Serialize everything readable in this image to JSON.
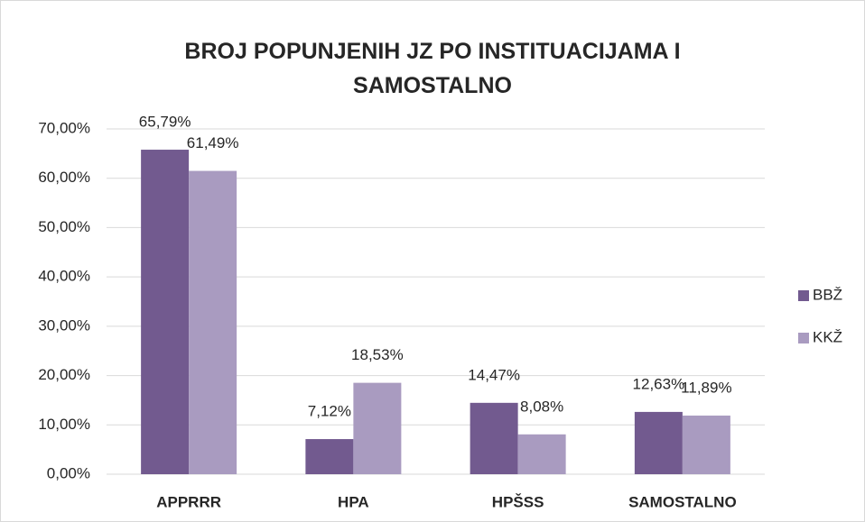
{
  "chart_data": {
    "type": "bar",
    "title": "BROJ POPUNJENIH JZ PO INSTITUACIJAMA I SAMOSTALNO",
    "categories": [
      "APPRRR",
      "HPA",
      "HPŠSS",
      "SAMOSTALNO"
    ],
    "series": [
      {
        "name": "BBŽ",
        "color": "#725a8f",
        "values": [
          65.79,
          7.12,
          14.47,
          12.63
        ],
        "value_labels": [
          "65,79%",
          "7,12%",
          "14,47%",
          "12,63%"
        ]
      },
      {
        "name": "KKŽ",
        "color": "#a99bc0",
        "values": [
          61.49,
          18.53,
          8.08,
          11.89
        ],
        "value_labels": [
          "61,49%",
          "18,53%",
          "8,08%",
          "11,89%"
        ]
      }
    ],
    "ylim": [
      0,
      70
    ],
    "yticks": [
      {
        "value": 0,
        "label": "0,00%"
      },
      {
        "value": 10,
        "label": "10,00%"
      },
      {
        "value": 20,
        "label": "20,00%"
      },
      {
        "value": 30,
        "label": "30,00%"
      },
      {
        "value": 40,
        "label": "40,00%"
      },
      {
        "value": 50,
        "label": "50,00%"
      },
      {
        "value": 60,
        "label": "60,00%"
      },
      {
        "value": 70,
        "label": "70,00%"
      }
    ],
    "grid": true,
    "legend": "right"
  }
}
